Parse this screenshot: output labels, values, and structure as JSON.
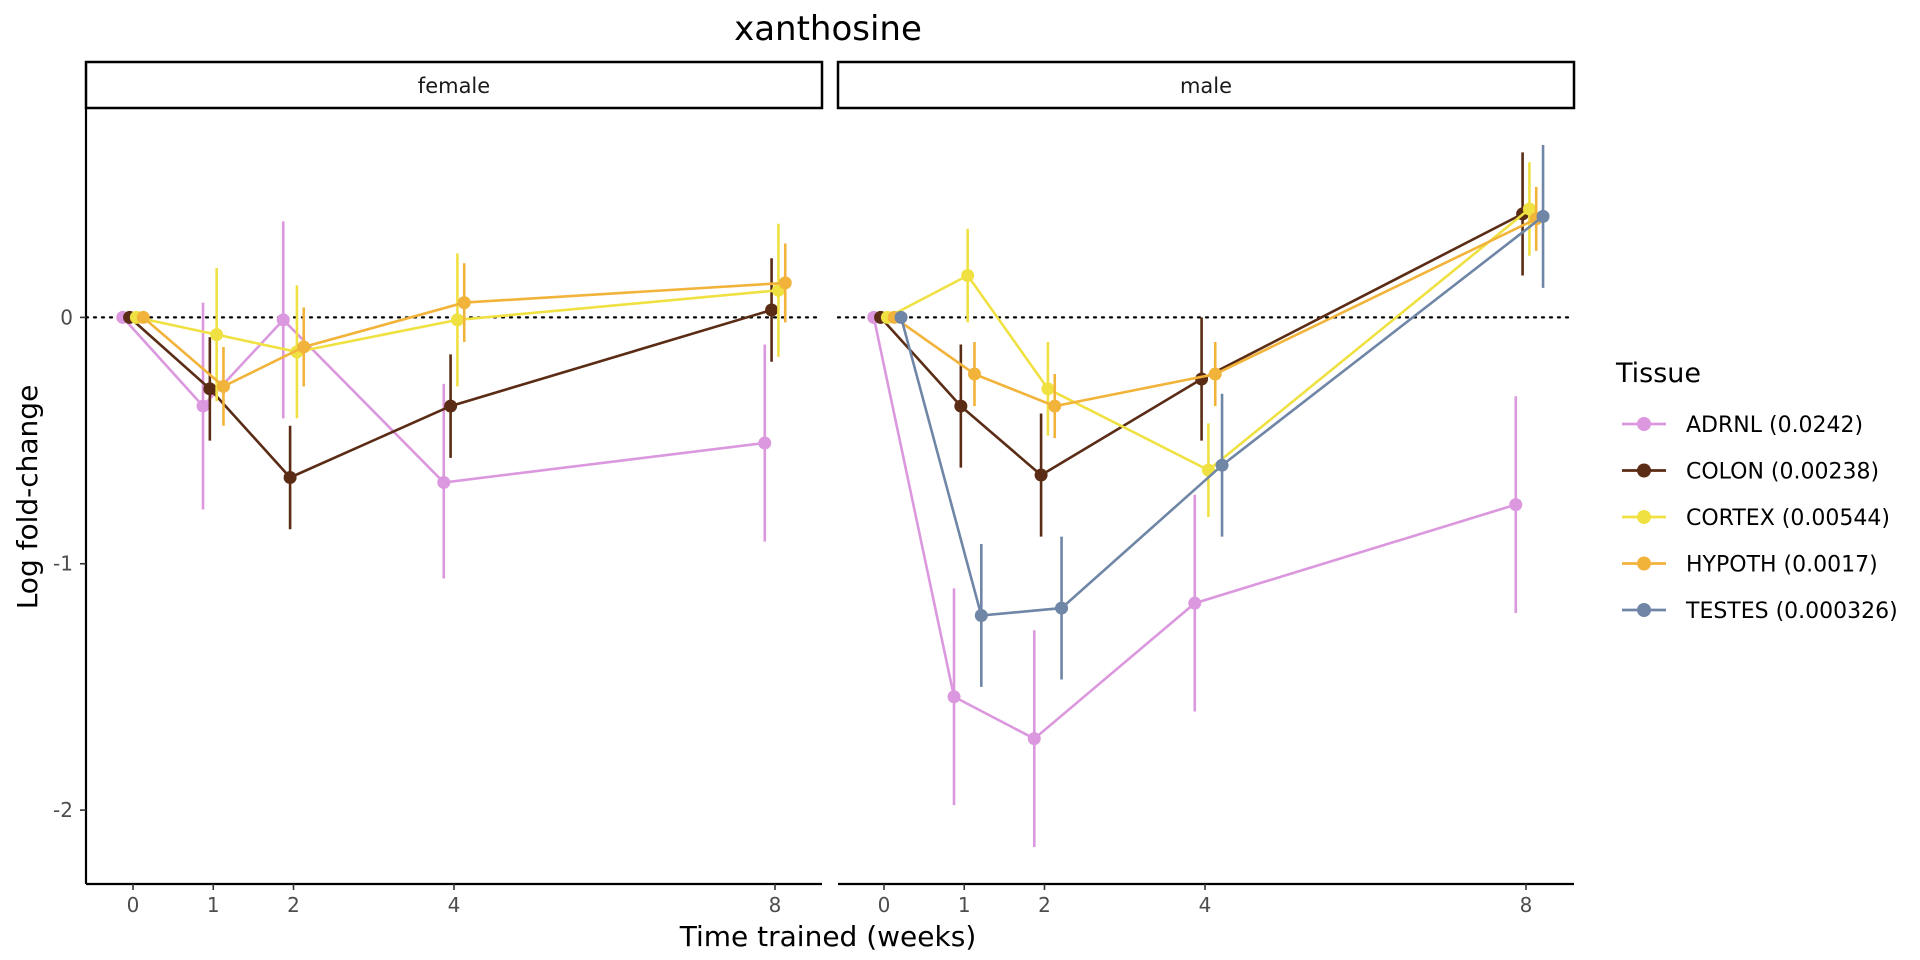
{
  "chart_data": {
    "type": "line",
    "title": "xanthosine",
    "xlabel": "Time trained (weeks)",
    "ylabel": "Log fold-change",
    "x_ticks": [
      0,
      1,
      2,
      4,
      8
    ],
    "y_ticks": [
      0,
      -1,
      -2
    ],
    "ylim": [
      -2.3,
      0.85
    ],
    "reference_line": {
      "y": 0,
      "style": "dotted"
    },
    "legend": {
      "title": "Tissue",
      "placement": "right"
    },
    "series": [
      {
        "name": "ADRNL (0.0242)",
        "color": "#DB98DE"
      },
      {
        "name": "COLON (0.00238)",
        "color": "#5B2C15"
      },
      {
        "name": "CORTEX (0.00544)",
        "color": "#F0E142"
      },
      {
        "name": "HYPOTH (0.0017)",
        "color": "#F2B33B"
      },
      {
        "name": "TESTES (0.000326)",
        "color": "#6F86A6"
      }
    ],
    "panels": [
      {
        "label": "female",
        "series": [
          {
            "name": "ADRNL (0.0242)",
            "points": [
              {
                "x": 0,
                "y": 0,
                "lo": 0,
                "hi": 0
              },
              {
                "x": 1,
                "y": -0.36,
                "lo": -0.78,
                "hi": 0.06
              },
              {
                "x": 2,
                "y": -0.01,
                "lo": -0.41,
                "hi": 0.39
              },
              {
                "x": 4,
                "y": -0.67,
                "lo": -1.06,
                "hi": -0.27
              },
              {
                "x": 8,
                "y": -0.51,
                "lo": -0.91,
                "hi": -0.11
              }
            ]
          },
          {
            "name": "COLON (0.00238)",
            "points": [
              {
                "x": 0,
                "y": 0,
                "lo": 0,
                "hi": 0
              },
              {
                "x": 1,
                "y": -0.29,
                "lo": -0.5,
                "hi": -0.08
              },
              {
                "x": 2,
                "y": -0.65,
                "lo": -0.86,
                "hi": -0.44
              },
              {
                "x": 4,
                "y": -0.36,
                "lo": -0.57,
                "hi": -0.15
              },
              {
                "x": 8,
                "y": 0.03,
                "lo": -0.18,
                "hi": 0.24
              }
            ]
          },
          {
            "name": "CORTEX (0.00544)",
            "points": [
              {
                "x": 0,
                "y": 0,
                "lo": 0,
                "hi": 0
              },
              {
                "x": 1,
                "y": -0.07,
                "lo": -0.34,
                "hi": 0.2
              },
              {
                "x": 2,
                "y": -0.14,
                "lo": -0.41,
                "hi": 0.13
              },
              {
                "x": 4,
                "y": -0.01,
                "lo": -0.28,
                "hi": 0.26
              },
              {
                "x": 8,
                "y": 0.11,
                "lo": -0.16,
                "hi": 0.38
              }
            ]
          },
          {
            "name": "HYPOTH (0.0017)",
            "points": [
              {
                "x": 0,
                "y": 0,
                "lo": 0,
                "hi": 0
              },
              {
                "x": 1,
                "y": -0.28,
                "lo": -0.44,
                "hi": -0.12
              },
              {
                "x": 2,
                "y": -0.12,
                "lo": -0.28,
                "hi": 0.04
              },
              {
                "x": 4,
                "y": 0.06,
                "lo": -0.1,
                "hi": 0.22
              },
              {
                "x": 8,
                "y": 0.14,
                "lo": -0.02,
                "hi": 0.3
              }
            ]
          }
        ]
      },
      {
        "label": "male",
        "series": [
          {
            "name": "ADRNL (0.0242)",
            "points": [
              {
                "x": 0,
                "y": 0,
                "lo": 0,
                "hi": 0
              },
              {
                "x": 1,
                "y": -1.54,
                "lo": -1.98,
                "hi": -1.1
              },
              {
                "x": 2,
                "y": -1.71,
                "lo": -2.15,
                "hi": -1.27
              },
              {
                "x": 4,
                "y": -1.16,
                "lo": -1.6,
                "hi": -0.72
              },
              {
                "x": 8,
                "y": -0.76,
                "lo": -1.2,
                "hi": -0.32
              }
            ]
          },
          {
            "name": "COLON (0.00238)",
            "points": [
              {
                "x": 0,
                "y": 0,
                "lo": 0,
                "hi": 0
              },
              {
                "x": 1,
                "y": -0.36,
                "lo": -0.61,
                "hi": -0.11
              },
              {
                "x": 2,
                "y": -0.64,
                "lo": -0.89,
                "hi": -0.39
              },
              {
                "x": 4,
                "y": -0.25,
                "lo": -0.5,
                "hi": 0
              },
              {
                "x": 8,
                "y": 0.42,
                "lo": 0.17,
                "hi": 0.67
              }
            ]
          },
          {
            "name": "CORTEX (0.00544)",
            "points": [
              {
                "x": 0,
                "y": 0,
                "lo": 0,
                "hi": 0
              },
              {
                "x": 1,
                "y": 0.17,
                "lo": -0.02,
                "hi": 0.36
              },
              {
                "x": 2,
                "y": -0.29,
                "lo": -0.48,
                "hi": -0.1
              },
              {
                "x": 4,
                "y": -0.62,
                "lo": -0.81,
                "hi": -0.43
              },
              {
                "x": 8,
                "y": 0.44,
                "lo": 0.25,
                "hi": 0.63
              }
            ]
          },
          {
            "name": "HYPOTH (0.0017)",
            "points": [
              {
                "x": 0,
                "y": 0,
                "lo": 0,
                "hi": 0
              },
              {
                "x": 1,
                "y": -0.23,
                "lo": -0.36,
                "hi": -0.1
              },
              {
                "x": 2,
                "y": -0.36,
                "lo": -0.49,
                "hi": -0.23
              },
              {
                "x": 4,
                "y": -0.23,
                "lo": -0.36,
                "hi": -0.1
              },
              {
                "x": 8,
                "y": 0.4,
                "lo": 0.27,
                "hi": 0.53
              }
            ]
          },
          {
            "name": "TESTES (0.000326)",
            "points": [
              {
                "x": 0,
                "y": 0,
                "lo": 0,
                "hi": 0
              },
              {
                "x": 1,
                "y": -1.21,
                "lo": -1.5,
                "hi": -0.92
              },
              {
                "x": 2,
                "y": -1.18,
                "lo": -1.47,
                "hi": -0.89
              },
              {
                "x": 4,
                "y": -0.6,
                "lo": -0.89,
                "hi": -0.31
              },
              {
                "x": 8,
                "y": 0.41,
                "lo": 0.12,
                "hi": 0.7
              }
            ]
          }
        ]
      }
    ]
  }
}
